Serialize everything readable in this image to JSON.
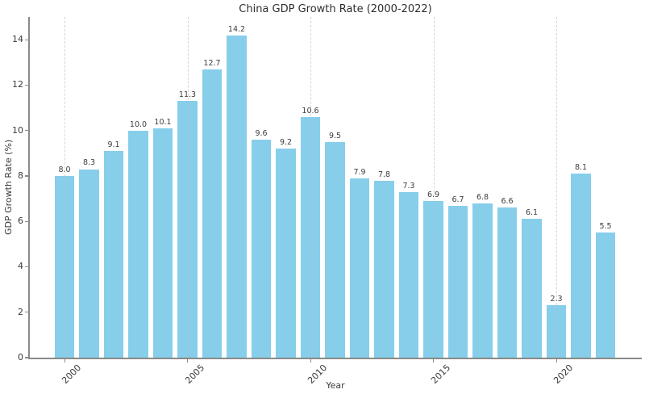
{
  "chart": {
    "title": "China GDP Growth Rate (2000-2022)",
    "xlabel": "Year",
    "ylabel": "GDP Growth Rate (%)"
  },
  "chart_data": {
    "type": "bar",
    "title": "China GDP Growth Rate (2000-2022)",
    "xlabel": "Year",
    "ylabel": "GDP Growth Rate (%)",
    "categories": [
      2000,
      2001,
      2002,
      2003,
      2004,
      2005,
      2006,
      2007,
      2008,
      2009,
      2010,
      2011,
      2012,
      2013,
      2014,
      2015,
      2016,
      2017,
      2018,
      2019,
      2020,
      2021,
      2022
    ],
    "values": [
      8.0,
      8.3,
      9.1,
      10.0,
      10.1,
      11.3,
      12.7,
      14.2,
      9.6,
      9.2,
      10.6,
      9.5,
      7.9,
      7.8,
      7.3,
      6.9,
      6.7,
      6.8,
      6.6,
      6.1,
      2.3,
      8.1,
      5.5
    ],
    "bar_labels": [
      "8.0",
      "8.3",
      "9.1",
      "10.0",
      "10.1",
      "11.3",
      "12.7",
      "14.2",
      "9.6",
      "9.2",
      "10.6",
      "9.5",
      "7.9",
      "7.8",
      "7.3",
      "6.9",
      "6.7",
      "6.8",
      "6.6",
      "6.1",
      "2.3",
      "8.1",
      "5.5"
    ],
    "x_tick_labels": [
      "2000",
      "2005",
      "2010",
      "2015",
      "2020"
    ],
    "y_ticks": [
      0,
      2,
      4,
      6,
      8,
      10,
      12,
      14
    ],
    "ylim": [
      0,
      15
    ],
    "grid": "vertical dashed gridlines at x ticks, drawn over bars",
    "legend": "none",
    "bar_color": "#87CEEB",
    "grid_color": "#bdbdbd",
    "spine_color": "#8a8a8a",
    "text_color": "#3a3a3a",
    "background_color": "#ffffff",
    "x_tick_rotation_deg": 45
  }
}
